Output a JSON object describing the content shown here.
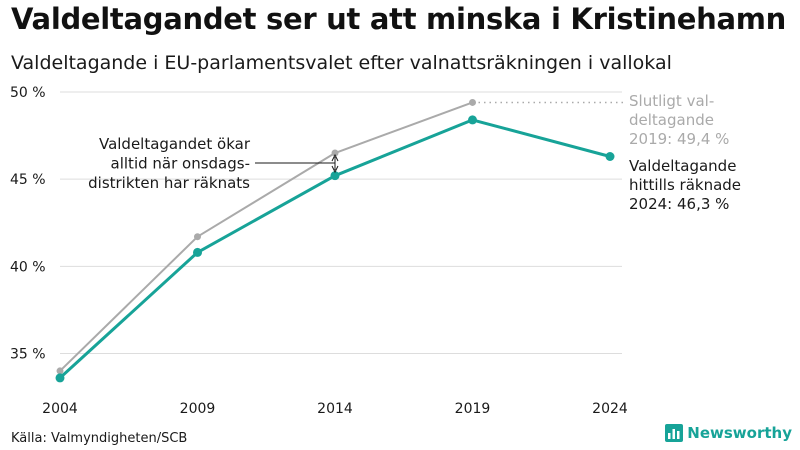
{
  "title": "Valdeltagandet ser ut att minska i Kristinehamn",
  "subtitle": "Valdeltagande i EU-parlamentsvalet efter valnattsräkningen i vallokal",
  "source": "Källa: Valmyndigheten/SCB",
  "brand": {
    "name": "Newsworthy",
    "color": "#17a398",
    "icon": "bar-chart-icon"
  },
  "colors": {
    "final": "#aaaaaa",
    "counted": "#17a398",
    "grid": "#dddddd"
  },
  "chart_data": {
    "type": "line",
    "x": [
      "2004",
      "2009",
      "2014",
      "2019",
      "2024"
    ],
    "y_ticks": [
      "35 %",
      "40 %",
      "45 %",
      "50 %"
    ],
    "ylim": [
      33,
      50
    ],
    "grid": true,
    "series": [
      {
        "key": "final",
        "values": [
          34.0,
          41.7,
          46.5,
          49.4,
          null
        ]
      },
      {
        "key": "counted",
        "values": [
          33.6,
          40.8,
          45.2,
          48.4,
          46.3
        ]
      }
    ],
    "annotations": {
      "final": [
        "Slutligt val-",
        "deltagande",
        "2019: 49,4 %"
      ],
      "counted": [
        "Valdeltagande",
        "hittills räknade",
        "2024: 46,3 %"
      ],
      "note": [
        "Valdeltagandet ökar",
        "alltid när onsdags-",
        "distrikten har räknats"
      ]
    }
  }
}
